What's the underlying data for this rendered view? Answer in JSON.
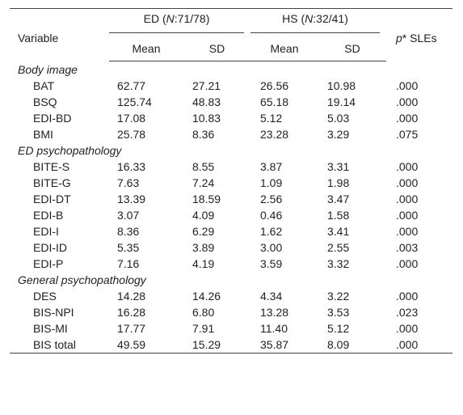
{
  "header": {
    "variable": "Variable",
    "groups": [
      {
        "parts": [
          "ED (",
          "N",
          ":71/78)"
        ]
      },
      {
        "parts": [
          "HS (",
          "N",
          ":32/41)"
        ]
      }
    ],
    "p": [
      "p",
      "* SLEs"
    ],
    "subheaders": [
      "Mean",
      "SD",
      "Mean",
      "SD"
    ]
  },
  "sections": [
    {
      "title": "Body image",
      "rows": [
        [
          "BAT",
          "62.77",
          "27.21",
          "26.56",
          "10.98",
          ".000"
        ],
        [
          "BSQ",
          "125.74",
          "48.83",
          "65.18",
          "19.14",
          ".000"
        ],
        [
          "EDI-BD",
          "17.08",
          "10.83",
          "5.12",
          "5.03",
          ".000"
        ],
        [
          "BMI",
          "25.78",
          "8.36",
          "23.28",
          "3.29",
          ".075"
        ]
      ]
    },
    {
      "title": "ED psychopathology",
      "rows": [
        [
          "BITE-S",
          "16.33",
          "8.55",
          "3.87",
          "3.31",
          ".000"
        ],
        [
          "BITE-G",
          "7.63",
          "7.24",
          "1.09",
          "1.98",
          ".000"
        ],
        [
          "EDI-DT",
          "13.39",
          "18.59",
          "2.56",
          "3.47",
          ".000"
        ],
        [
          "EDI-B",
          "3.07",
          "4.09",
          "0.46",
          "1.58",
          ".000"
        ],
        [
          "EDI-I",
          "8.36",
          "6.29",
          "1.62",
          "3.41",
          ".000"
        ],
        [
          "EDI-ID",
          "5.35",
          "3.89",
          "3.00",
          "2.55",
          ".003"
        ],
        [
          "EDI-P",
          "7.16",
          "4.19",
          "3.59",
          "3.32",
          ".000"
        ]
      ]
    },
    {
      "title": "General psychopathology",
      "rows": [
        [
          "DES",
          "14.28",
          "14.26",
          "4.34",
          "3.22",
          ".000"
        ],
        [
          "BIS-NPI",
          "16.28",
          "6.80",
          "13.28",
          "3.53",
          ".023"
        ],
        [
          "BIS-MI",
          "17.77",
          "7.91",
          "11.40",
          "5.12",
          ".000"
        ],
        [
          "BIS total",
          "49.59",
          "15.29",
          "35.87",
          "8.09",
          ".000"
        ]
      ]
    }
  ]
}
